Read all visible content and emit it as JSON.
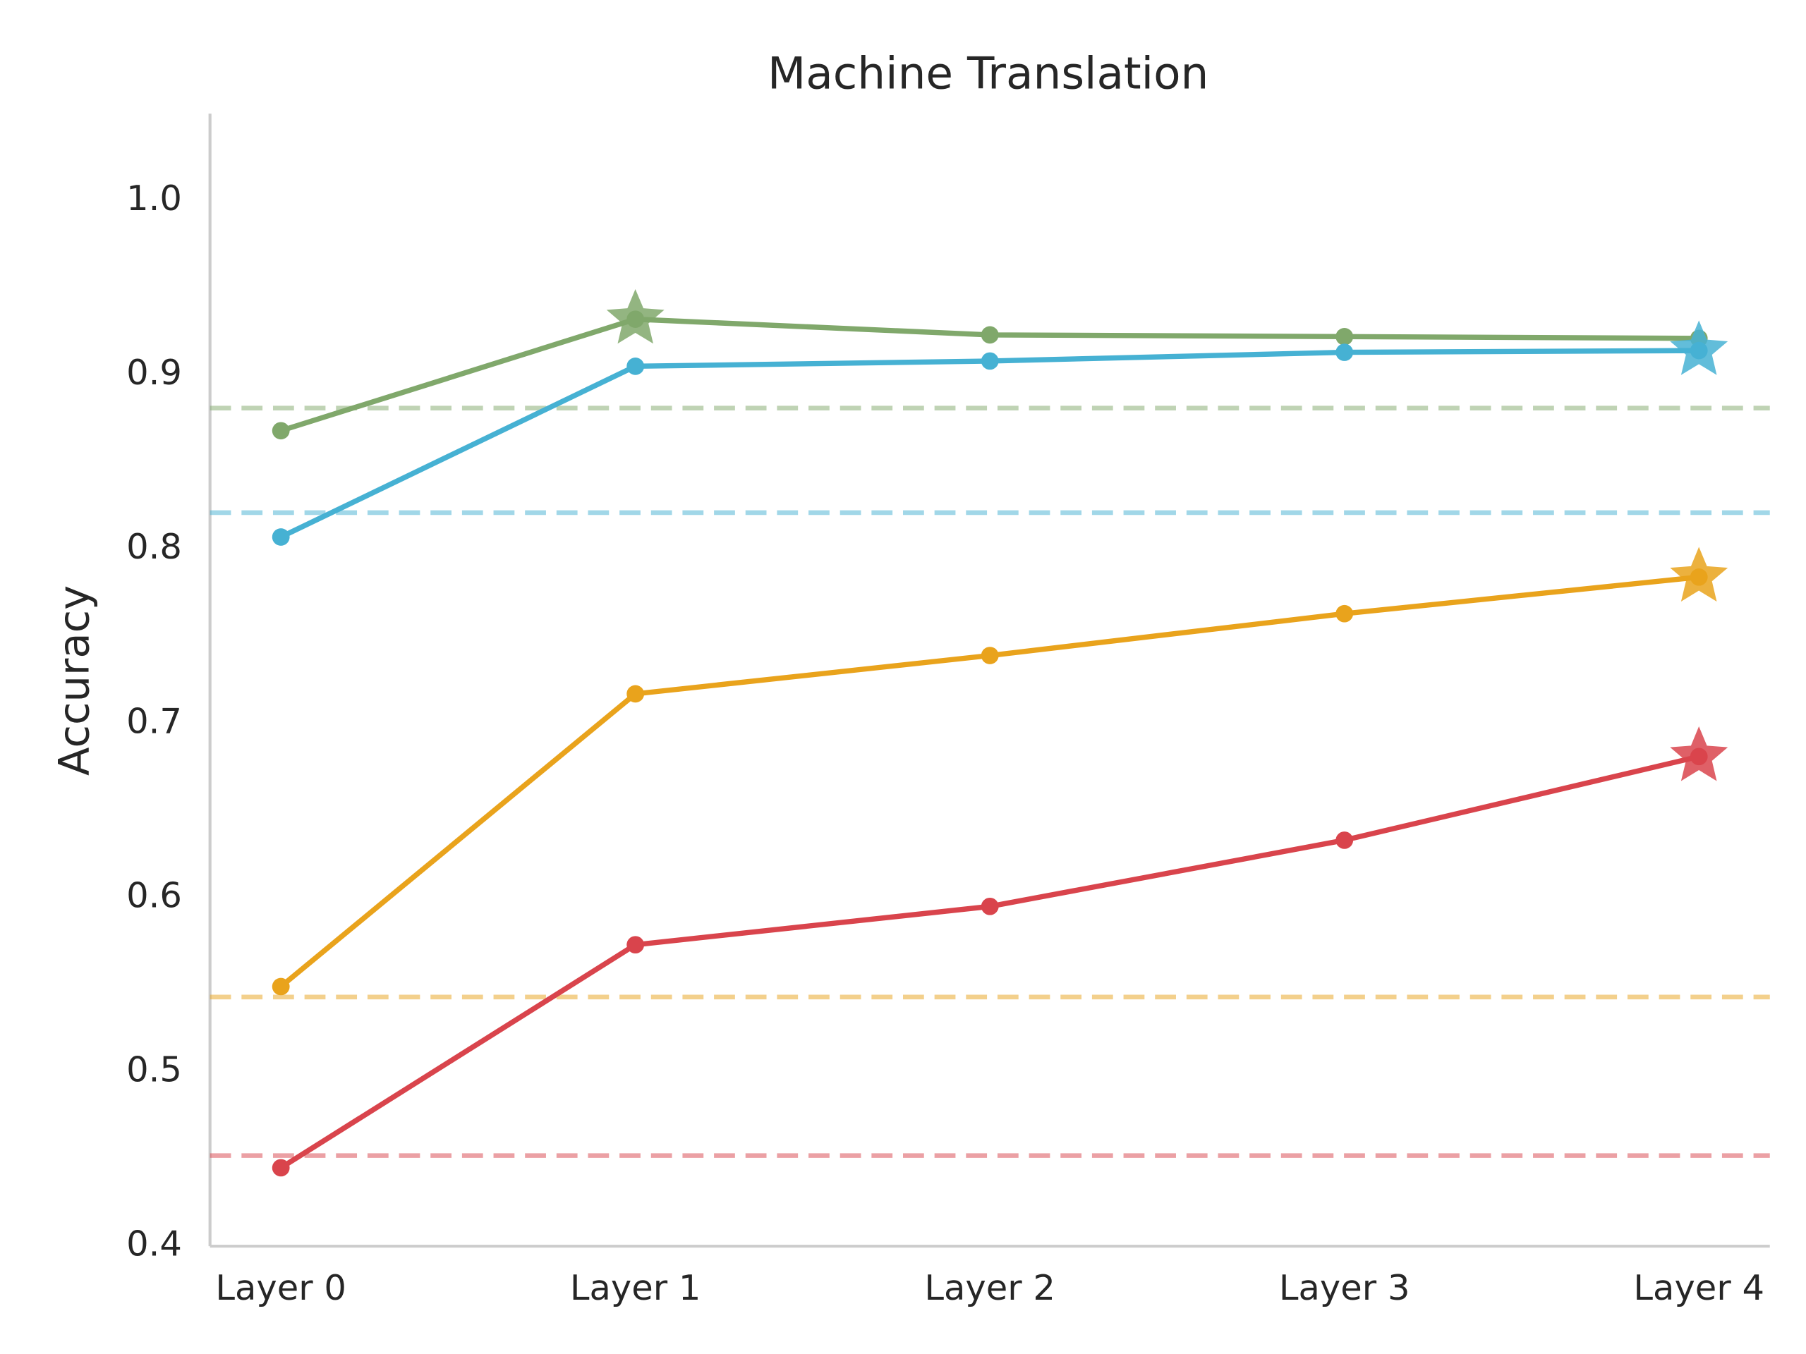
{
  "chart_data": {
    "type": "line",
    "title": "Machine Translation",
    "y_label": "Accuracy",
    "categories": [
      "Layer 0",
      "Layer 1",
      "Layer 2",
      "Layer 3",
      "Layer 4"
    ],
    "series": [
      {
        "color": "#80a86b",
        "values": [
          0.868,
          0.932,
          0.923,
          0.922,
          0.921
        ],
        "baseline": 0.881,
        "best_index": 1
      },
      {
        "color": "#46b1d3",
        "values": [
          0.807,
          0.905,
          0.908,
          0.913,
          0.914
        ],
        "baseline": 0.821,
        "best_index": 4
      },
      {
        "color": "#e9a31c",
        "values": [
          0.549,
          0.717,
          0.739,
          0.763,
          0.784
        ],
        "baseline": 0.543,
        "best_index": 4
      },
      {
        "color": "#d9444c",
        "values": [
          0.445,
          0.573,
          0.595,
          0.633,
          0.681
        ],
        "baseline": 0.452,
        "best_index": 4
      }
    ],
    "ylim": [
      0.4,
      1.05
    ],
    "yticks": [
      0.4,
      0.5,
      0.6,
      0.7,
      0.8,
      0.9,
      {
        "value": 1,
        "label": "1.0"
      }
    ]
  }
}
